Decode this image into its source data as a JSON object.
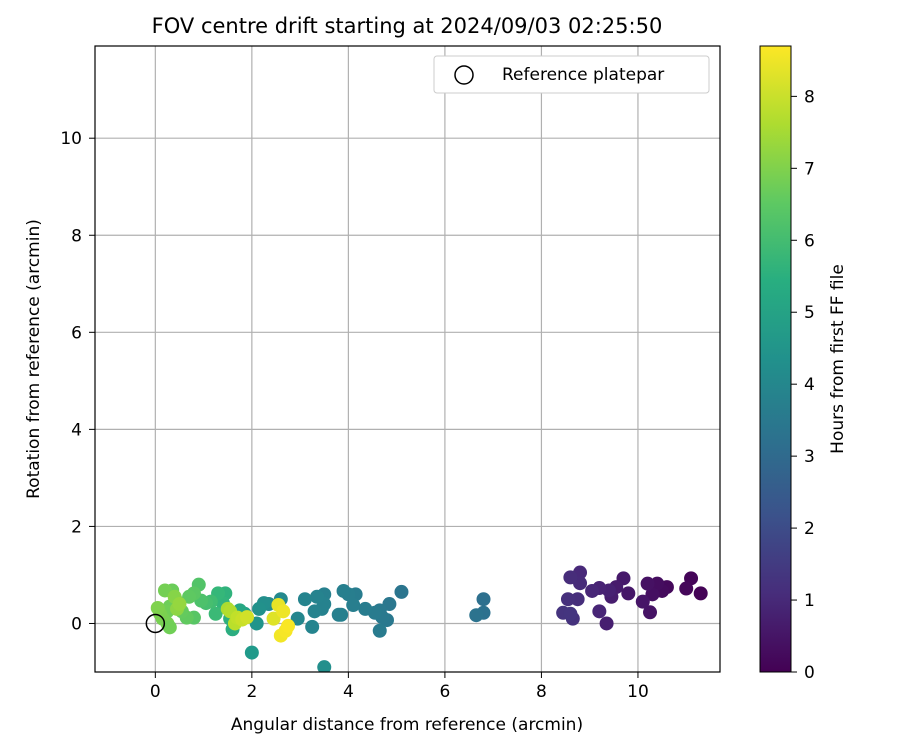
{
  "chart_data": {
    "type": "scatter",
    "title": "FOV centre drift starting at 2024/09/03 02:25:50",
    "xlabel": "Angular distance from reference (arcmin)",
    "ylabel": "Rotation from reference (arcmin)",
    "xlim": [
      -1.25,
      11.7
    ],
    "ylim": [
      -1.0,
      11.9
    ],
    "xticks": [
      0,
      2,
      4,
      6,
      8,
      10
    ],
    "yticks": [
      0,
      2,
      4,
      6,
      8,
      10
    ],
    "grid": true,
    "legend": {
      "placement": "top-right",
      "entries": [
        "Reference platepar"
      ]
    },
    "reference_point": {
      "name": "Reference platepar",
      "x": 0,
      "y": 0,
      "marker": "open-circle"
    },
    "colorbar": {
      "label": "Hours from first FF file",
      "colormap": "viridis",
      "range": [
        0,
        8.7
      ],
      "ticks": [
        0,
        1,
        2,
        3,
        4,
        5,
        6,
        7,
        8
      ]
    },
    "points": [
      {
        "x": 11.3,
        "y": 0.62,
        "c": 0.05
      },
      {
        "x": 11.1,
        "y": 0.93,
        "c": 0.1
      },
      {
        "x": 11.0,
        "y": 0.72,
        "c": 0.15
      },
      {
        "x": 10.6,
        "y": 0.75,
        "c": 0.2
      },
      {
        "x": 10.5,
        "y": 0.67,
        "c": 0.25
      },
      {
        "x": 10.4,
        "y": 0.82,
        "c": 0.3
      },
      {
        "x": 10.3,
        "y": 0.6,
        "c": 0.35
      },
      {
        "x": 10.2,
        "y": 0.82,
        "c": 0.4
      },
      {
        "x": 10.25,
        "y": 0.23,
        "c": 0.45
      },
      {
        "x": 10.1,
        "y": 0.45,
        "c": 0.5
      },
      {
        "x": 9.8,
        "y": 0.62,
        "c": 0.55
      },
      {
        "x": 9.7,
        "y": 0.93,
        "c": 0.6
      },
      {
        "x": 9.55,
        "y": 0.75,
        "c": 0.65
      },
      {
        "x": 9.45,
        "y": 0.55,
        "c": 0.7
      },
      {
        "x": 9.35,
        "y": 0.0,
        "c": 0.75
      },
      {
        "x": 9.4,
        "y": 0.68,
        "c": 0.8
      },
      {
        "x": 9.2,
        "y": 0.73,
        "c": 0.85
      },
      {
        "x": 9.2,
        "y": 0.25,
        "c": 0.9
      },
      {
        "x": 9.05,
        "y": 0.67,
        "c": 0.95
      },
      {
        "x": 8.8,
        "y": 1.05,
        "c": 1.0
      },
      {
        "x": 8.8,
        "y": 0.83,
        "c": 1.05
      },
      {
        "x": 8.6,
        "y": 0.95,
        "c": 1.1
      },
      {
        "x": 8.75,
        "y": 0.5,
        "c": 1.15
      },
      {
        "x": 8.55,
        "y": 0.5,
        "c": 1.2
      },
      {
        "x": 8.65,
        "y": 0.1,
        "c": 1.25
      },
      {
        "x": 8.45,
        "y": 0.22,
        "c": 1.3
      },
      {
        "x": 8.6,
        "y": 0.2,
        "c": 1.35
      },
      {
        "x": 6.8,
        "y": 0.5,
        "c": 3.2
      },
      {
        "x": 6.8,
        "y": 0.22,
        "c": 3.25
      },
      {
        "x": 6.65,
        "y": 0.17,
        "c": 3.3
      },
      {
        "x": 5.1,
        "y": 0.65,
        "c": 3.4
      },
      {
        "x": 4.85,
        "y": 0.4,
        "c": 3.45
      },
      {
        "x": 4.8,
        "y": 0.07,
        "c": 3.5
      },
      {
        "x": 4.65,
        "y": 0.27,
        "c": 3.55
      },
      {
        "x": 4.7,
        "y": 0.13,
        "c": 3.55
      },
      {
        "x": 4.65,
        "y": -0.15,
        "c": 3.6
      },
      {
        "x": 4.55,
        "y": 0.22,
        "c": 3.6
      },
      {
        "x": 4.35,
        "y": 0.3,
        "c": 3.65
      },
      {
        "x": 4.15,
        "y": 0.6,
        "c": 3.65
      },
      {
        "x": 4.1,
        "y": 0.38,
        "c": 3.7
      },
      {
        "x": 4.0,
        "y": 0.6,
        "c": 3.7
      },
      {
        "x": 3.9,
        "y": 0.67,
        "c": 3.75
      },
      {
        "x": 3.85,
        "y": 0.18,
        "c": 3.75
      },
      {
        "x": 3.8,
        "y": 0.18,
        "c": 3.8
      },
      {
        "x": 3.5,
        "y": 0.6,
        "c": 3.8
      },
      {
        "x": 3.5,
        "y": 0.4,
        "c": 3.85
      },
      {
        "x": 3.45,
        "y": 0.3,
        "c": 3.85
      },
      {
        "x": 3.35,
        "y": 0.55,
        "c": 3.9
      },
      {
        "x": 3.3,
        "y": 0.25,
        "c": 3.9
      },
      {
        "x": 3.25,
        "y": -0.07,
        "c": 3.95
      },
      {
        "x": 3.1,
        "y": 0.5,
        "c": 3.95
      },
      {
        "x": 2.95,
        "y": 0.1,
        "c": 4.0
      },
      {
        "x": 3.5,
        "y": -0.9,
        "c": 4.3
      },
      {
        "x": 2.6,
        "y": 0.5,
        "c": 4.1
      },
      {
        "x": 2.35,
        "y": 0.4,
        "c": 4.2
      },
      {
        "x": 2.25,
        "y": 0.42,
        "c": 4.3
      },
      {
        "x": 2.15,
        "y": 0.3,
        "c": 4.4
      },
      {
        "x": 2.1,
        "y": 0.0,
        "c": 4.5
      },
      {
        "x": 2.0,
        "y": -0.6,
        "c": 4.7
      },
      {
        "x": 1.85,
        "y": 0.2,
        "c": 5.0
      },
      {
        "x": 1.75,
        "y": 0.27,
        "c": 5.2
      },
      {
        "x": 1.6,
        "y": -0.12,
        "c": 5.4
      },
      {
        "x": 1.55,
        "y": 0.1,
        "c": 5.5
      },
      {
        "x": 1.45,
        "y": 0.62,
        "c": 5.6
      },
      {
        "x": 1.4,
        "y": 0.42,
        "c": 5.7
      },
      {
        "x": 1.3,
        "y": 0.62,
        "c": 5.8
      },
      {
        "x": 1.25,
        "y": 0.2,
        "c": 5.9
      },
      {
        "x": 1.15,
        "y": 0.45,
        "c": 6.0
      },
      {
        "x": 1.05,
        "y": 0.42,
        "c": 6.1
      },
      {
        "x": 0.95,
        "y": 0.47,
        "c": 6.2
      },
      {
        "x": 0.9,
        "y": 0.8,
        "c": 6.3
      },
      {
        "x": 0.8,
        "y": 0.12,
        "c": 6.4
      },
      {
        "x": 0.8,
        "y": 0.62,
        "c": 6.45
      },
      {
        "x": 0.7,
        "y": 0.55,
        "c": 6.5
      },
      {
        "x": 0.65,
        "y": 0.12,
        "c": 6.55
      },
      {
        "x": 0.55,
        "y": 0.25,
        "c": 6.6
      },
      {
        "x": 0.45,
        "y": 0.45,
        "c": 6.65
      },
      {
        "x": 0.35,
        "y": 0.68,
        "c": 6.7
      },
      {
        "x": 0.3,
        "y": 0.35,
        "c": 6.75
      },
      {
        "x": 0.25,
        "y": 0.25,
        "c": 6.8
      },
      {
        "x": 0.2,
        "y": 0.68,
        "c": 6.85
      },
      {
        "x": 0.15,
        "y": 0.1,
        "c": 6.9
      },
      {
        "x": 0.1,
        "y": 0.2,
        "c": 6.95
      },
      {
        "x": 0.05,
        "y": 0.32,
        "c": 7.0
      },
      {
        "x": 0.25,
        "y": 0.0,
        "c": 6.9
      },
      {
        "x": 0.3,
        "y": -0.08,
        "c": 6.8
      },
      {
        "x": 0.4,
        "y": 0.55,
        "c": 7.1
      },
      {
        "x": 0.45,
        "y": 0.3,
        "c": 7.2
      },
      {
        "x": 0.5,
        "y": 0.4,
        "c": 7.3
      },
      {
        "x": 1.5,
        "y": 0.3,
        "c": 7.6
      },
      {
        "x": 1.55,
        "y": 0.25,
        "c": 7.7
      },
      {
        "x": 1.65,
        "y": 0.0,
        "c": 7.8
      },
      {
        "x": 1.7,
        "y": 0.12,
        "c": 7.9
      },
      {
        "x": 1.8,
        "y": 0.08,
        "c": 8.0
      },
      {
        "x": 1.9,
        "y": 0.13,
        "c": 8.1
      },
      {
        "x": 2.45,
        "y": 0.1,
        "c": 8.3
      },
      {
        "x": 2.55,
        "y": 0.38,
        "c": 8.4
      },
      {
        "x": 2.65,
        "y": 0.25,
        "c": 8.5
      },
      {
        "x": 2.6,
        "y": -0.25,
        "c": 8.55
      },
      {
        "x": 2.7,
        "y": -0.15,
        "c": 8.6
      },
      {
        "x": 2.75,
        "y": -0.05,
        "c": 8.65
      }
    ]
  }
}
